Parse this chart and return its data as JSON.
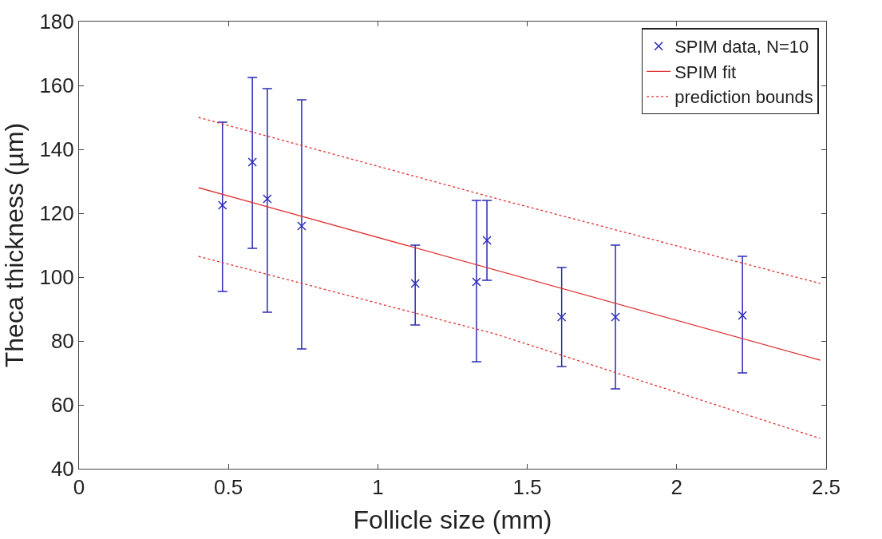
{
  "chart_data": {
    "type": "scatter",
    "xlabel": "Follicle size (mm)",
    "ylabel": "Theca thickness (µm)",
    "xlim": [
      0,
      2.5
    ],
    "xticks": [
      0,
      0.5,
      1,
      1.5,
      2,
      2.5
    ],
    "ylim": [
      40,
      180
    ],
    "yticks": [
      40,
      60,
      80,
      100,
      120,
      140,
      160,
      180
    ],
    "legend": "top right",
    "series": [
      {
        "name": "SPIM data, N=10",
        "marker": "cross",
        "color": "#2b2bb5",
        "x": [
          0.48,
          0.58,
          0.63,
          0.745,
          1.125,
          1.33,
          1.365,
          1.615,
          1.795,
          2.22
        ],
        "values": [
          122.5,
          136,
          124.5,
          116,
          98,
          98.5,
          111.5,
          87.5,
          87.5,
          88
        ],
        "errors": [
          [
            95.5,
            148.5
          ],
          [
            109,
            162.5
          ],
          [
            89,
            159
          ],
          [
            77.5,
            155.5
          ],
          [
            85,
            110
          ],
          [
            73.5,
            124
          ],
          [
            99,
            124
          ],
          [
            72,
            103
          ],
          [
            65,
            110
          ],
          [
            70,
            106.5
          ]
        ]
      },
      {
        "name": "SPIM fit",
        "type": "line",
        "line_style": "solid",
        "color": "#e03030",
        "x": [
          0.4,
          2.48
        ],
        "values": [
          128,
          74
        ]
      },
      {
        "name": "prediction bounds",
        "type": "line",
        "line_style": "dotted",
        "color": "#e03030",
        "x": [
          0.4,
          1.4,
          2.48
        ],
        "values": [
          150,
          124.5,
          98
        ]
      },
      {
        "type": "line",
        "line_style": "dotted",
        "color": "#e03030",
        "x": [
          0.4,
          1.4,
          2.48
        ],
        "values": [
          106.5,
          82,
          49.5
        ]
      }
    ]
  }
}
